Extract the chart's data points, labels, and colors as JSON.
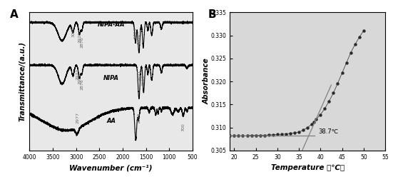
{
  "panel_A": {
    "title": "A",
    "xlabel": "Wavenumber (cm⁻¹)",
    "ylabel": "Transmittance/(a.u.)",
    "xlim": [
      4000,
      500
    ],
    "bg_color": "#e8e8e8"
  },
  "panel_B": {
    "title": "B",
    "xlabel": "Temperature （℃）",
    "ylabel": "Absorbance",
    "xlim": [
      19,
      55
    ],
    "ylim": [
      0.305,
      0.335
    ],
    "yticks": [
      0.305,
      0.31,
      0.315,
      0.32,
      0.325,
      0.33,
      0.335
    ],
    "xticks": [
      20,
      25,
      30,
      35,
      40,
      45,
      50,
      55
    ],
    "annotation": "38.7℃",
    "bg_color": "#d8d8d8",
    "temperature": [
      19,
      20,
      21,
      22,
      23,
      24,
      25,
      26,
      27,
      28,
      29,
      30,
      31,
      32,
      33,
      34,
      35,
      36,
      37,
      38,
      38.5,
      39,
      40,
      41,
      42,
      43,
      44,
      45,
      46,
      47,
      48,
      49,
      50
    ],
    "absorbance": [
      0.3082,
      0.3082,
      0.3082,
      0.3082,
      0.3082,
      0.3083,
      0.3083,
      0.3083,
      0.3083,
      0.3084,
      0.3084,
      0.3085,
      0.3085,
      0.3086,
      0.3087,
      0.3088,
      0.309,
      0.3094,
      0.31,
      0.3107,
      0.3112,
      0.3118,
      0.3128,
      0.3141,
      0.3157,
      0.3175,
      0.3196,
      0.3218,
      0.324,
      0.3262,
      0.328,
      0.3296,
      0.331
    ]
  }
}
